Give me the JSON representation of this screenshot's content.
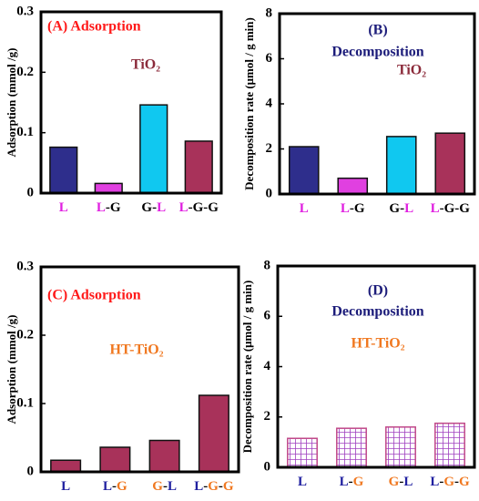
{
  "chart_data": [
    {
      "type": "bar",
      "title": "(A) Adsorption",
      "title_color": "#ff1a1a",
      "annotation": "TiO₂",
      "annotation_color": "#8b2a3a",
      "y_label": "Adsorption  (mmol /g)",
      "categories": [
        "L",
        "L-G",
        "G-L",
        "L-G-G"
      ],
      "label_colors": {
        "L": "#e020e0",
        "G": "#000000",
        "-": "#000000"
      },
      "values": [
        0.076,
        0.016,
        0.146,
        0.086
      ],
      "colors": [
        "#2e2e8c",
        "#e040e0",
        "#10c8f0",
        "#a8325a"
      ],
      "ylim": [
        0,
        0.3
      ],
      "yticks": [
        0,
        0.1,
        0.2,
        0.3
      ]
    },
    {
      "type": "bar",
      "title": "(B)",
      "subtitle": "Decomposition",
      "title_color": "#1c1c7a",
      "annotation": "TiO₂",
      "annotation_color": "#8b2a3a",
      "y_label": "Decomposition rate (μmol / g min)",
      "categories": [
        "L",
        "L-G",
        "G-L",
        "L-G-G"
      ],
      "label_colors": {
        "L": "#e020e0",
        "G": "#000000",
        "-": "#000000"
      },
      "values": [
        2.1,
        0.7,
        2.55,
        2.7
      ],
      "colors": [
        "#2e2e8c",
        "#e040e0",
        "#10c8f0",
        "#a8325a"
      ],
      "ylim": [
        0,
        8
      ],
      "yticks": [
        0,
        2,
        4,
        6,
        8
      ]
    },
    {
      "type": "bar",
      "title": "(C)  Adsorption",
      "title_color": "#ff1a1a",
      "annotation": "HT-TiO₂",
      "annotation_color": "#f07820",
      "y_label": "Adsorption  (mmol /g)",
      "categories": [
        "L",
        "L-G",
        "G-L",
        "L-G-G"
      ],
      "label_colors": {
        "L": "#2020a0",
        "G": "#f07820",
        "-": "#000000"
      },
      "values": [
        0.017,
        0.036,
        0.046,
        0.112
      ],
      "colors": [
        "#a8325a",
        "#a8325a",
        "#a8325a",
        "#a8325a"
      ],
      "ylim": [
        0,
        0.3
      ],
      "yticks": [
        0,
        0.1,
        0.2,
        0.3
      ]
    },
    {
      "type": "bar",
      "title": "(D)",
      "subtitle": "Decomposition",
      "title_color": "#1c1c7a",
      "annotation": "HT-TiO₂",
      "annotation_color": "#f07820",
      "y_label": "Decomposition rate (μmol / g min)",
      "categories": [
        "L",
        "L-G",
        "G-L",
        "L-G-G"
      ],
      "label_colors": {
        "L": "#2020a0",
        "G": "#f07820",
        "-": "#000000"
      },
      "values": [
        1.15,
        1.55,
        1.6,
        1.75
      ],
      "colors": [
        "#c04888",
        "#c04888",
        "#c04888",
        "#c04888"
      ],
      "hatch": "grid",
      "ylim": [
        0,
        8
      ],
      "yticks": [
        0,
        2,
        4,
        6,
        8
      ]
    }
  ]
}
